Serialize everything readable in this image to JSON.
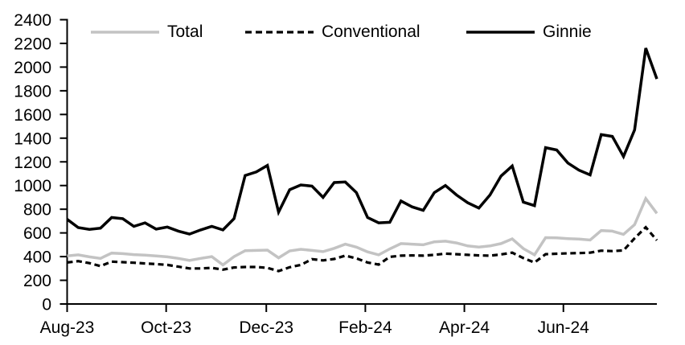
{
  "legend": [
    {
      "label": "Total"
    },
    {
      "label": "Conventional"
    },
    {
      "label": "Ginnie"
    }
  ],
  "colors": {
    "total_line": "#c3c3c3",
    "conventional_line": "#000000",
    "ginnie_line": "#000000",
    "axis": "#000000",
    "background": "#ffffff"
  },
  "chart_data": {
    "type": "line",
    "title": "",
    "xlabel": "",
    "ylabel": "",
    "x_unit": "weekly observations, Aug-2023 through early Aug-2024",
    "x_tick_labels": [
      "Aug-23",
      "Oct-23",
      "Dec-23",
      "Feb-24",
      "Apr-24",
      "Jun-24"
    ],
    "x_tick_positions": [
      0,
      8.9,
      17.9,
      26.8,
      35.7,
      44.6
    ],
    "ylim": [
      0,
      2400
    ],
    "y_tick_step": 200,
    "grid": false,
    "legend_position": "top",
    "series": [
      {
        "name": "Total",
        "color": "#c3c3c3",
        "line_style": "solid",
        "values": [
          405,
          415,
          398,
          385,
          430,
          425,
          417,
          412,
          405,
          398,
          385,
          368,
          385,
          400,
          330,
          400,
          450,
          452,
          455,
          390,
          448,
          462,
          452,
          442,
          470,
          505,
          480,
          440,
          415,
          465,
          510,
          505,
          500,
          525,
          530,
          515,
          490,
          480,
          490,
          510,
          550,
          468,
          415,
          560,
          558,
          552,
          548,
          540,
          620,
          615,
          588,
          670,
          890,
          765
        ]
      },
      {
        "name": "Conventional",
        "color": "#000000",
        "line_style": "dashed",
        "values": [
          350,
          362,
          345,
          320,
          358,
          353,
          348,
          342,
          337,
          330,
          315,
          300,
          300,
          305,
          290,
          308,
          312,
          312,
          305,
          278,
          310,
          330,
          378,
          368,
          380,
          408,
          385,
          350,
          333,
          398,
          408,
          410,
          408,
          415,
          425,
          420,
          415,
          410,
          408,
          418,
          433,
          388,
          350,
          420,
          424,
          428,
          430,
          433,
          450,
          447,
          452,
          555,
          648,
          538
        ]
      },
      {
        "name": "Ginnie",
        "color": "#000000",
        "line_style": "solid",
        "values": [
          715,
          645,
          630,
          640,
          730,
          720,
          655,
          685,
          632,
          650,
          615,
          590,
          625,
          655,
          625,
          720,
          1085,
          1115,
          1170,
          775,
          965,
          1005,
          995,
          900,
          1025,
          1030,
          940,
          730,
          685,
          690,
          870,
          820,
          790,
          940,
          1000,
          920,
          855,
          810,
          920,
          1080,
          1165,
          860,
          830,
          1320,
          1300,
          1190,
          1130,
          1090,
          1430,
          1415,
          1245,
          1470,
          2160,
          1900
        ]
      }
    ]
  }
}
